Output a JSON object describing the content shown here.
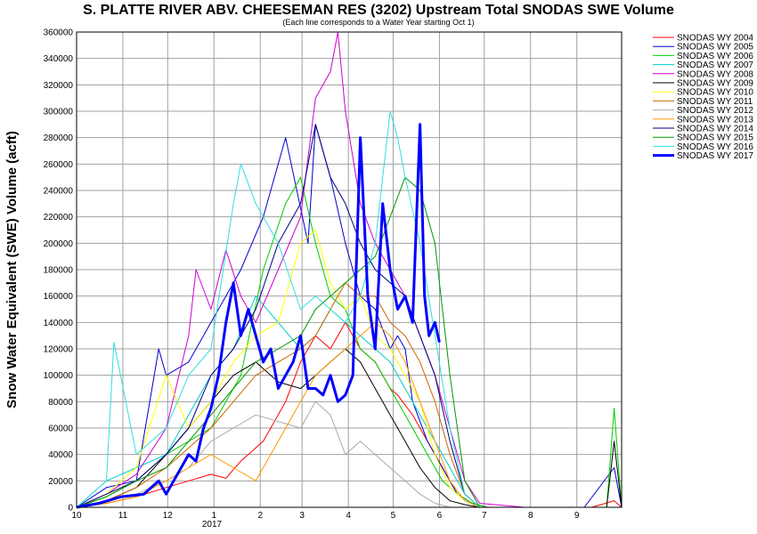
{
  "chart_data": {
    "type": "line",
    "title": "S. PLATTE RIVER ABV. CHEESEMAN RES (3202) Upstream Total SNODAS SWE Volume",
    "subtitle": "(Each line corresponds to a Water Year starting Oct 1)",
    "ylabel": "Snow Water Equivalent (SWE) Volume (acft)",
    "xlabel": "",
    "ylim": [
      0,
      360000
    ],
    "yticks": [
      0,
      20000,
      40000,
      60000,
      80000,
      100000,
      120000,
      140000,
      160000,
      180000,
      200000,
      220000,
      240000,
      260000,
      280000,
      300000,
      320000,
      340000,
      360000
    ],
    "x_range_days": [
      0,
      365
    ],
    "x_ticks": [
      {
        "label": "10",
        "day": 0
      },
      {
        "label": "11",
        "day": 31
      },
      {
        "label": "12",
        "day": 61
      },
      {
        "label": "1",
        "day": 92
      },
      {
        "label": "2",
        "day": 123
      },
      {
        "label": "3",
        "day": 151
      },
      {
        "label": "4",
        "day": 182
      },
      {
        "label": "5",
        "day": 212
      },
      {
        "label": "6",
        "day": 243
      },
      {
        "label": "7",
        "day": 273
      },
      {
        "label": "8",
        "day": 304
      },
      {
        "label": "9",
        "day": 335
      }
    ],
    "x_year_label": "2017",
    "grid": true,
    "legend_position": "top-right",
    "series": [
      {
        "name": "SNODAS WY 2004",
        "color": "#ff0000",
        "width": 1,
        "x": [
          0,
          20,
          40,
          60,
          75,
          90,
          100,
          110,
          125,
          140,
          150,
          160,
          170,
          180,
          190,
          200,
          210,
          215,
          225,
          235,
          245,
          255,
          265,
          275,
          300,
          330,
          345,
          360,
          365
        ],
        "values": [
          0,
          3000,
          8000,
          15000,
          20000,
          25000,
          22000,
          35000,
          50000,
          80000,
          110000,
          130000,
          120000,
          140000,
          120000,
          110000,
          90000,
          85000,
          70000,
          50000,
          30000,
          10000,
          3000,
          0,
          0,
          0,
          0,
          5000,
          0
        ]
      },
      {
        "name": "SNODAS WY 2005",
        "color": "#0000cc",
        "width": 1,
        "x": [
          0,
          20,
          40,
          55,
          60,
          75,
          90,
          100,
          110,
          125,
          140,
          155,
          160,
          170,
          180,
          190,
          200,
          210,
          215,
          220,
          225,
          235,
          245,
          255,
          265,
          275,
          300,
          340,
          360,
          365
        ],
        "values": [
          0,
          15000,
          20000,
          120000,
          100000,
          110000,
          140000,
          160000,
          180000,
          220000,
          280000,
          200000,
          290000,
          250000,
          200000,
          160000,
          150000,
          120000,
          130000,
          120000,
          80000,
          50000,
          30000,
          10000,
          3000,
          0,
          0,
          0,
          30000,
          0
        ]
      },
      {
        "name": "SNODAS WY 2006",
        "color": "#00cc00",
        "width": 1,
        "x": [
          0,
          20,
          40,
          60,
          75,
          90,
          100,
          110,
          125,
          140,
          150,
          160,
          170,
          180,
          190,
          200,
          210,
          220,
          230,
          235,
          245,
          255,
          265,
          275,
          300,
          340,
          355,
          360,
          365
        ],
        "values": [
          0,
          8000,
          20000,
          40000,
          50000,
          60000,
          80000,
          100000,
          180000,
          230000,
          250000,
          200000,
          160000,
          150000,
          120000,
          110000,
          90000,
          70000,
          50000,
          40000,
          20000,
          10000,
          3000,
          0,
          0,
          0,
          0,
          75000,
          0
        ]
      },
      {
        "name": "SNODAS WY 2007",
        "color": "#00cccc",
        "width": 1,
        "x": [
          0,
          20,
          40,
          60,
          75,
          90,
          105,
          120,
          135,
          150,
          160,
          170,
          180,
          190,
          200,
          210,
          220,
          230,
          240,
          250,
          260,
          270,
          300,
          340,
          365
        ],
        "values": [
          0,
          20000,
          30000,
          40000,
          70000,
          100000,
          120000,
          160000,
          140000,
          120000,
          130000,
          150000,
          140000,
          130000,
          120000,
          110000,
          90000,
          70000,
          50000,
          30000,
          10000,
          0,
          0,
          0,
          0
        ]
      },
      {
        "name": "SNODAS WY 2008",
        "color": "#cc00cc",
        "width": 1,
        "x": [
          0,
          20,
          40,
          60,
          75,
          80,
          90,
          100,
          110,
          120,
          135,
          150,
          160,
          170,
          175,
          180,
          190,
          200,
          210,
          220,
          230,
          240,
          250,
          260,
          270,
          300,
          340,
          365
        ],
        "values": [
          0,
          10000,
          25000,
          60000,
          130000,
          180000,
          150000,
          195000,
          160000,
          140000,
          180000,
          220000,
          310000,
          330000,
          360000,
          300000,
          230000,
          200000,
          180000,
          160000,
          130000,
          100000,
          60000,
          20000,
          3000,
          0,
          0,
          0
        ]
      },
      {
        "name": "SNODAS WY 2009",
        "color": "#000000",
        "width": 1,
        "x": [
          0,
          20,
          40,
          60,
          75,
          90,
          105,
          120,
          135,
          150,
          160,
          170,
          180,
          190,
          200,
          210,
          220,
          230,
          240,
          250,
          260,
          270,
          300,
          340,
          355,
          360,
          365
        ],
        "values": [
          0,
          5000,
          15000,
          40000,
          60000,
          80000,
          100000,
          110000,
          95000,
          90000,
          100000,
          110000,
          120000,
          110000,
          90000,
          70000,
          50000,
          30000,
          15000,
          5000,
          2000,
          0,
          0,
          0,
          0,
          50000,
          0
        ]
      },
      {
        "name": "SNODAS WY 2010",
        "color": "#ffff00",
        "width": 1,
        "x": [
          0,
          20,
          40,
          60,
          75,
          90,
          105,
          120,
          135,
          150,
          160,
          170,
          180,
          190,
          200,
          210,
          220,
          230,
          240,
          250,
          260,
          270,
          300,
          340,
          365
        ],
        "values": [
          0,
          10000,
          30000,
          100000,
          60000,
          80000,
          110000,
          130000,
          140000,
          200000,
          210000,
          170000,
          150000,
          160000,
          130000,
          120000,
          100000,
          80000,
          40000,
          15000,
          5000,
          0,
          0,
          0,
          0
        ]
      },
      {
        "name": "SNODAS WY 2011",
        "color": "#cc6600",
        "width": 1,
        "x": [
          0,
          20,
          40,
          60,
          75,
          90,
          105,
          120,
          135,
          150,
          160,
          170,
          180,
          190,
          200,
          210,
          220,
          230,
          240,
          250,
          260,
          270,
          300,
          340,
          365
        ],
        "values": [
          0,
          5000,
          15000,
          30000,
          45000,
          60000,
          80000,
          100000,
          110000,
          120000,
          130000,
          150000,
          170000,
          160000,
          160000,
          140000,
          130000,
          110000,
          80000,
          40000,
          10000,
          0,
          0,
          0,
          0
        ]
      },
      {
        "name": "SNODAS WY 2012",
        "color": "#aaaaaa",
        "width": 1,
        "x": [
          0,
          20,
          40,
          60,
          75,
          90,
          105,
          120,
          135,
          150,
          160,
          170,
          180,
          190,
          200,
          210,
          220,
          230,
          240,
          250,
          260,
          270,
          300,
          340,
          365
        ],
        "values": [
          0,
          5000,
          10000,
          20000,
          30000,
          50000,
          60000,
          70000,
          65000,
          60000,
          80000,
          70000,
          40000,
          50000,
          40000,
          30000,
          20000,
          10000,
          3000,
          0,
          0,
          0,
          0,
          0,
          0
        ]
      },
      {
        "name": "SNODAS WY 2013",
        "color": "#ff9900",
        "width": 1,
        "x": [
          0,
          20,
          40,
          60,
          75,
          90,
          105,
          120,
          135,
          150,
          160,
          170,
          180,
          190,
          200,
          210,
          220,
          230,
          240,
          250,
          260,
          270,
          300,
          340,
          365
        ],
        "values": [
          0,
          3000,
          8000,
          20000,
          30000,
          40000,
          30000,
          20000,
          50000,
          80000,
          100000,
          110000,
          120000,
          130000,
          140000,
          130000,
          110000,
          80000,
          50000,
          20000,
          5000,
          0,
          0,
          0,
          0
        ]
      },
      {
        "name": "SNODAS WY 2014",
        "color": "#000080",
        "width": 1,
        "x": [
          0,
          20,
          40,
          60,
          75,
          90,
          105,
          120,
          135,
          150,
          160,
          170,
          180,
          190,
          200,
          210,
          220,
          230,
          240,
          250,
          260,
          270,
          300,
          340,
          365
        ],
        "values": [
          0,
          10000,
          20000,
          40000,
          60000,
          100000,
          120000,
          150000,
          200000,
          230000,
          290000,
          250000,
          230000,
          200000,
          180000,
          170000,
          160000,
          130000,
          100000,
          50000,
          10000,
          0,
          0,
          0,
          0
        ]
      },
      {
        "name": "SNODAS WY 2015",
        "color": "#009900",
        "width": 1,
        "x": [
          0,
          20,
          40,
          60,
          75,
          90,
          105,
          120,
          135,
          150,
          160,
          170,
          180,
          190,
          200,
          210,
          220,
          230,
          240,
          250,
          260,
          270,
          300,
          340,
          365
        ],
        "values": [
          0,
          8000,
          20000,
          30000,
          50000,
          70000,
          90000,
          110000,
          120000,
          130000,
          150000,
          160000,
          170000,
          180000,
          190000,
          220000,
          250000,
          240000,
          200000,
          100000,
          20000,
          0,
          0,
          0,
          0
        ]
      },
      {
        "name": "SNODAS WY 2016",
        "color": "#33dddd",
        "width": 1,
        "x": [
          0,
          20,
          25,
          40,
          60,
          75,
          90,
          105,
          110,
          120,
          135,
          150,
          160,
          170,
          180,
          190,
          200,
          210,
          215,
          220,
          230,
          240,
          250,
          260,
          270,
          300,
          340,
          365
        ],
        "values": [
          0,
          20000,
          125000,
          40000,
          60000,
          100000,
          120000,
          230000,
          260000,
          230000,
          200000,
          150000,
          160000,
          150000,
          140000,
          160000,
          200000,
          300000,
          280000,
          250000,
          200000,
          130000,
          60000,
          10000,
          0,
          0,
          0,
          0
        ]
      },
      {
        "name": "SNODAS WY 2017",
        "color": "#0000ff",
        "width": 3,
        "x": [
          0,
          15,
          30,
          45,
          50,
          55,
          60,
          65,
          70,
          75,
          80,
          85,
          90,
          95,
          100,
          105,
          110,
          115,
          120,
          125,
          130,
          135,
          140,
          145,
          150,
          155,
          160,
          165,
          170,
          175,
          180,
          185,
          190,
          195,
          200,
          205,
          210,
          215,
          220,
          225,
          230,
          233,
          236,
          240,
          243
        ],
        "values": [
          0,
          3000,
          8000,
          10000,
          15000,
          20000,
          10000,
          20000,
          30000,
          40000,
          35000,
          60000,
          75000,
          100000,
          140000,
          170000,
          130000,
          150000,
          130000,
          110000,
          120000,
          90000,
          100000,
          110000,
          130000,
          90000,
          90000,
          85000,
          100000,
          80000,
          85000,
          100000,
          280000,
          160000,
          120000,
          230000,
          180000,
          150000,
          160000,
          140000,
          290000,
          160000,
          130000,
          140000,
          125000
        ]
      }
    ]
  }
}
